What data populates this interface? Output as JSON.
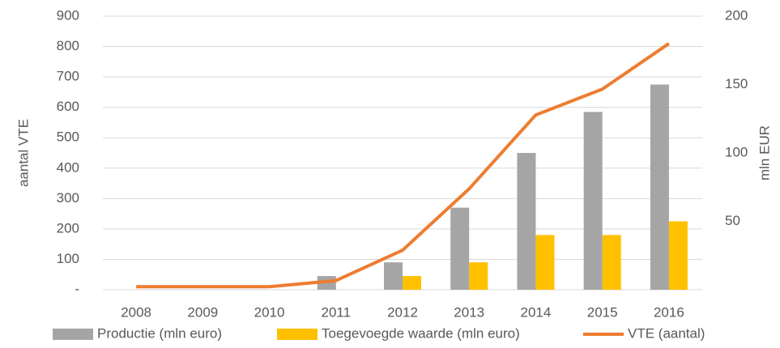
{
  "chart_data": {
    "type": "bar_line",
    "y_label": "aantal VTE",
    "y2_label": "mln EUR",
    "categories": [
      "2008",
      "2009",
      "2010",
      "2011",
      "2012",
      "2013",
      "2014",
      "2015",
      "2016"
    ],
    "series": [
      {
        "name": "Productie (mln euro)",
        "color": "#a5a5a5",
        "type": "bar",
        "axis": "y2",
        "values": [
          null,
          null,
          null,
          10,
          20,
          60,
          100,
          130,
          150
        ]
      },
      {
        "name": "Toegevoegde waarde (mln euro)",
        "color": "#ffc000",
        "type": "bar",
        "axis": "y2",
        "values": [
          null,
          null,
          null,
          null,
          10,
          20,
          40,
          40,
          50
        ]
      },
      {
        "name": "VTE (aantal)",
        "color": "#ed7d31",
        "type": "line",
        "values": [
          10,
          10,
          10,
          30,
          130,
          332,
          575,
          660,
          810
        ]
      }
    ],
    "ylim": [
      0,
      900
    ],
    "yticks": [
      {
        "value": 0,
        "label": "-"
      },
      100,
      200,
      300,
      400,
      500,
      600,
      700,
      800,
      900
    ],
    "y2lim": [
      0,
      200
    ],
    "y2ticks": [
      50,
      100,
      150,
      200
    ],
    "grid": true,
    "legend": "bottom"
  }
}
